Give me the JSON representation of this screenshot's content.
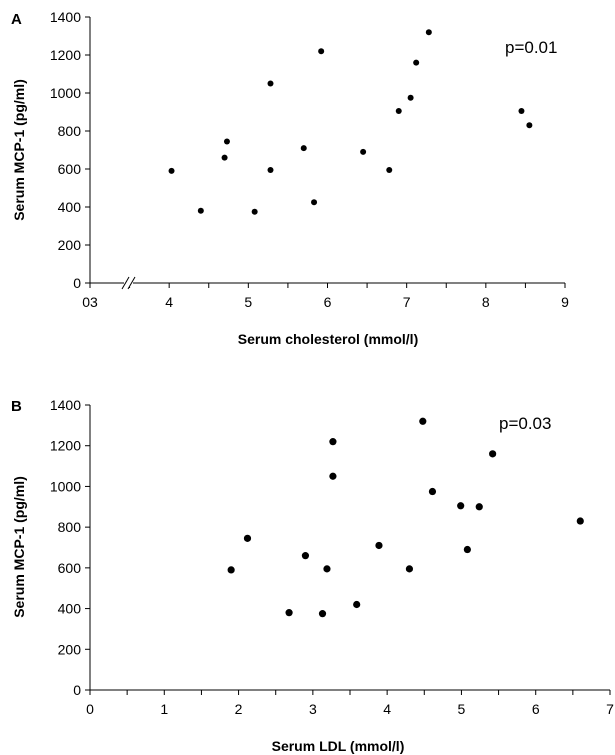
{
  "chart_data": [
    {
      "type": "scatter",
      "panel": "A",
      "annotation": "p=0.01",
      "xlabel": "Serum cholesterol (mmol/l)",
      "ylabel": "Serum MCP-1 (pg/ml)",
      "xlim": [
        3,
        9
      ],
      "ylim": [
        0,
        1400
      ],
      "x_ticks": [
        3,
        4,
        5,
        6,
        7,
        8,
        9
      ],
      "x_tick_labels": [
        "03",
        "4",
        "5",
        "6",
        "7",
        "8",
        "9"
      ],
      "y_ticks": [
        0,
        200,
        400,
        600,
        800,
        1000,
        1200,
        1400
      ],
      "y_tick_labels": [
        "0",
        "200",
        "400",
        "600",
        "800",
        "1000",
        "1200",
        "1400"
      ],
      "axis_break": true,
      "grid": false,
      "points": [
        {
          "x": 4.03,
          "y": 590
        },
        {
          "x": 4.4,
          "y": 380
        },
        {
          "x": 4.7,
          "y": 660
        },
        {
          "x": 4.73,
          "y": 745
        },
        {
          "x": 5.08,
          "y": 375
        },
        {
          "x": 5.28,
          "y": 595
        },
        {
          "x": 5.28,
          "y": 1050
        },
        {
          "x": 5.7,
          "y": 710
        },
        {
          "x": 5.83,
          "y": 425
        },
        {
          "x": 5.92,
          "y": 1220
        },
        {
          "x": 6.45,
          "y": 690
        },
        {
          "x": 6.78,
          "y": 595
        },
        {
          "x": 6.9,
          "y": 905
        },
        {
          "x": 7.05,
          "y": 975
        },
        {
          "x": 7.12,
          "y": 1160
        },
        {
          "x": 7.28,
          "y": 1320
        },
        {
          "x": 8.45,
          "y": 905
        },
        {
          "x": 8.55,
          "y": 830
        }
      ]
    },
    {
      "type": "scatter",
      "panel": "B",
      "annotation": "p=0.03",
      "xlabel": "Serum LDL (mmol/l)",
      "ylabel": "Serum MCP-1 (pg/ml)",
      "xlim": [
        0,
        7
      ],
      "ylim": [
        0,
        1400
      ],
      "x_ticks": [
        0,
        1,
        2,
        3,
        4,
        5,
        6,
        7
      ],
      "x_tick_labels": [
        "0",
        "1",
        "2",
        "3",
        "4",
        "5",
        "6",
        "7"
      ],
      "y_ticks": [
        0,
        200,
        400,
        600,
        800,
        1000,
        1200,
        1400
      ],
      "y_tick_labels": [
        "0",
        "200",
        "400",
        "600",
        "800",
        "1000",
        "1200",
        "1400"
      ],
      "axis_break": false,
      "grid": false,
      "points": [
        {
          "x": 1.9,
          "y": 590
        },
        {
          "x": 2.12,
          "y": 745
        },
        {
          "x": 2.68,
          "y": 380
        },
        {
          "x": 2.9,
          "y": 660
        },
        {
          "x": 3.13,
          "y": 375
        },
        {
          "x": 3.19,
          "y": 595
        },
        {
          "x": 3.27,
          "y": 1050
        },
        {
          "x": 3.27,
          "y": 1220
        },
        {
          "x": 3.59,
          "y": 420
        },
        {
          "x": 3.89,
          "y": 710
        },
        {
          "x": 4.3,
          "y": 595
        },
        {
          "x": 4.48,
          "y": 1320
        },
        {
          "x": 4.61,
          "y": 975
        },
        {
          "x": 4.99,
          "y": 905
        },
        {
          "x": 5.08,
          "y": 690
        },
        {
          "x": 5.24,
          "y": 900
        },
        {
          "x": 5.42,
          "y": 1160
        },
        {
          "x": 6.6,
          "y": 830
        }
      ]
    }
  ]
}
